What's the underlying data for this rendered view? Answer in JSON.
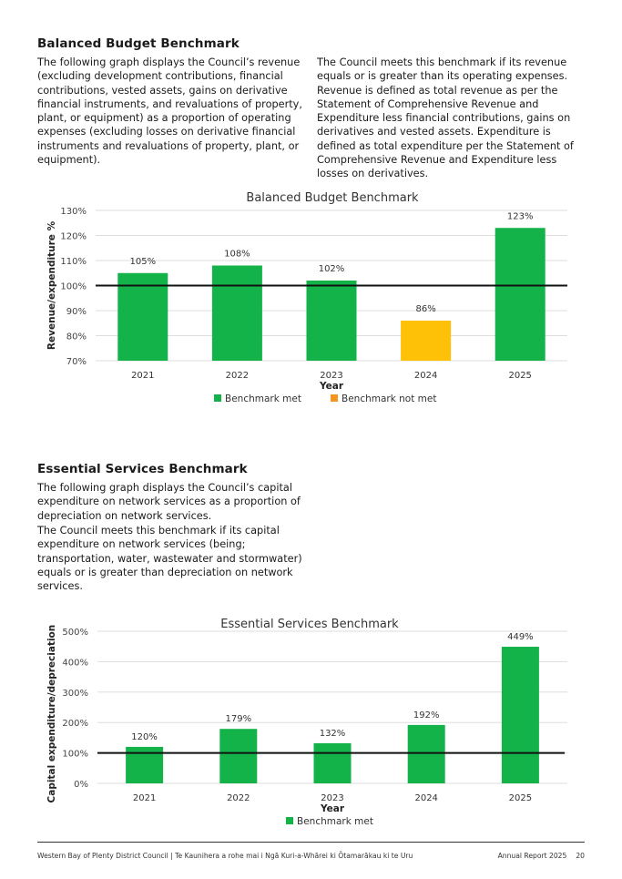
{
  "balanced": {
    "heading": "Balanced Budget Benchmark",
    "left_text": "The following graph displays the Council’s revenue (excluding development contributions, financial contributions, vested assets, gains on derivative financial instruments, and revaluations of property, plant, or equipment) as a proportion of operating expenses (excluding losses on derivative financial instruments and revaluations of property, plant, or equipment).",
    "right_text": "The Council meets this benchmark if its revenue equals or is greater than its operating expenses. Revenue is defined as total revenue as per the Statement of Comprehensive Revenue and Expenditure less financial contributions, gains on derivatives and vested assets. Expenditure is defined as total expenditure per the Statement of Comprehensive Revenue and Expenditure less losses on derivatives."
  },
  "essential": {
    "heading": "Essential Services Benchmark",
    "text1": "The following graph displays the Council’s capital expenditure on network services as a proportion of depreciation on network services.",
    "text2": "The Council meets this benchmark if its capital expenditure on network services (being; transportation, water, wastewater and stormwater) equals or is greater than depreciation on network services."
  },
  "chart_data": [
    {
      "type": "bar",
      "title": "Balanced Budget Benchmark",
      "xlabel": "Year",
      "ylabel": "Revenue/expenditure %",
      "categories": [
        "2021",
        "2022",
        "2023",
        "2024",
        "2025"
      ],
      "values": [
        105,
        108,
        102,
        86,
        123
      ],
      "value_labels": [
        "105%",
        "108%",
        "102%",
        "86%",
        "123%"
      ],
      "benchmark_met": [
        true,
        true,
        true,
        false,
        true
      ],
      "ylim": [
        70,
        130
      ],
      "yticks": [
        70,
        80,
        90,
        100,
        110,
        120,
        130
      ],
      "ytick_labels": [
        "70%",
        "80%",
        "90%",
        "100%",
        "110%",
        "120%",
        "130%"
      ],
      "benchmark_line": 100,
      "legend": [
        "Benchmark met",
        "Benchmark not met"
      ],
      "colors": {
        "met": "#14b34a",
        "not_met": "#ffc107",
        "legend_not_met": "#f7941d"
      }
    },
    {
      "type": "bar",
      "title": "Essential Services Benchmark",
      "xlabel": "Year",
      "ylabel": "Capital expenditure/depreciation %",
      "categories": [
        "2021",
        "2022",
        "2023",
        "2024",
        "2025"
      ],
      "values": [
        120,
        179,
        132,
        192,
        449
      ],
      "value_labels": [
        "120%",
        "179%",
        "132%",
        "192%",
        "449%"
      ],
      "benchmark_met": [
        true,
        true,
        true,
        true,
        true
      ],
      "ylim": [
        0,
        500
      ],
      "yticks": [
        0,
        100,
        200,
        300,
        400,
        500
      ],
      "ytick_labels": [
        "0%",
        "100%",
        "200%",
        "300%",
        "400%",
        "500%"
      ],
      "benchmark_line": 100,
      "legend": [
        "Benchmark met"
      ],
      "colors": {
        "met": "#14b34a"
      }
    }
  ],
  "footer": {
    "left": "Western Bay of Plenty District Council | Te Kaunihera a rohe mai i Ngā Kuri-a-Whārei ki Ōtamarākau ki te Uru",
    "report": "Annual Report 2025",
    "page": "20"
  }
}
